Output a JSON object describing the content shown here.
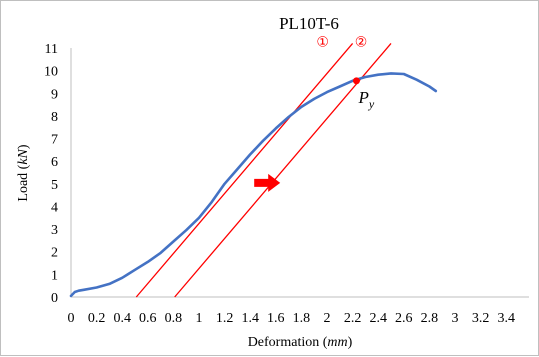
{
  "chart_data": {
    "type": "line",
    "title": "PL10T-6",
    "xlabel": "Deformation (mm)",
    "xlabel_prefix": "Deformation (",
    "xlabel_unit": "mm",
    "xlabel_suffix": ")",
    "ylabel": "Load (kN)",
    "ylabel_prefix": "Load (",
    "ylabel_unit": "kN",
    "ylabel_suffix": ")",
    "xlim": [
      0,
      3.5
    ],
    "ylim": [
      0,
      11
    ],
    "x_ticks": [
      "0",
      "0.2",
      "0.4",
      "0.6",
      "0.8",
      "1",
      "1.2",
      "1.4",
      "1.6",
      "1.8",
      "2",
      "2.2",
      "2.4",
      "2.6",
      "2.8",
      "3",
      "3.2",
      "3.4"
    ],
    "x_tick_values": [
      0,
      0.2,
      0.4,
      0.6,
      0.8,
      1,
      1.2,
      1.4,
      1.6,
      1.8,
      2,
      2.2,
      2.4,
      2.6,
      2.8,
      3,
      3.2,
      3.4
    ],
    "y_ticks": [
      "0",
      "1",
      "2",
      "3",
      "4",
      "5",
      "6",
      "7",
      "8",
      "9",
      "10",
      "11"
    ],
    "y_tick_values": [
      0,
      1,
      2,
      3,
      4,
      5,
      6,
      7,
      8,
      9,
      10,
      11
    ],
    "grid": false,
    "legend": "none",
    "series": [
      {
        "color": "#4472c4",
        "x": [
          0,
          0.03,
          0.06,
          0.1,
          0.2,
          0.3,
          0.4,
          0.5,
          0.6,
          0.7,
          0.8,
          0.9,
          1.0,
          1.1,
          1.2,
          1.3,
          1.4,
          1.5,
          1.6,
          1.7,
          1.8,
          1.9,
          2.0,
          2.1,
          2.2,
          2.3,
          2.4,
          2.5,
          2.6,
          2.7,
          2.8,
          2.85
        ],
        "y": [
          0.05,
          0.22,
          0.28,
          0.32,
          0.42,
          0.58,
          0.85,
          1.2,
          1.55,
          1.95,
          2.45,
          2.95,
          3.5,
          4.2,
          5.0,
          5.65,
          6.3,
          6.9,
          7.45,
          7.95,
          8.4,
          8.75,
          9.05,
          9.3,
          9.55,
          9.72,
          9.82,
          9.88,
          9.85,
          9.6,
          9.3,
          9.1
        ]
      }
    ],
    "reference_lines": [
      {
        "label": "①",
        "color": "#ff0000",
        "x": [
          0.51,
          2.2
        ],
        "y": [
          0,
          11.2
        ]
      },
      {
        "label": "②",
        "color": "#ff0000",
        "x": [
          0.81,
          2.5
        ],
        "y": [
          0,
          11.2
        ]
      }
    ],
    "annotations": [
      {
        "label": "P",
        "subscript": "y",
        "point_x": 2.23,
        "point_y": 9.55,
        "color": "#ff0000"
      },
      {
        "label": "shift-arrow",
        "x": 1.4,
        "y": 5.0,
        "color": "#ff0000"
      }
    ]
  }
}
